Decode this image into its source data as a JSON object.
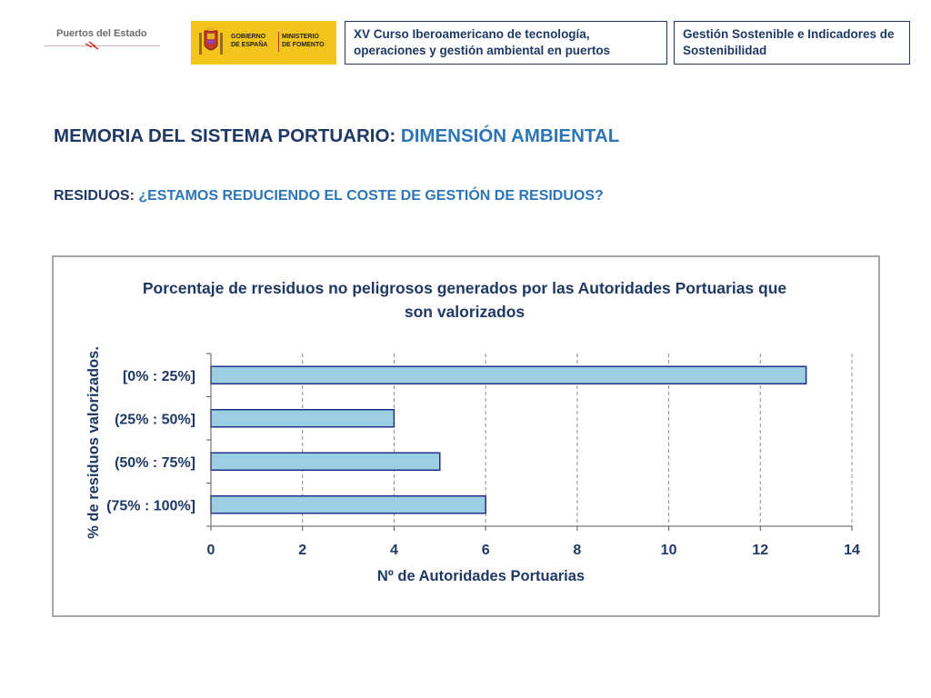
{
  "header": {
    "logo_puertos_text": "Puertos del Estado",
    "logo_gobierno_text": [
      "GOBIERNO",
      "DE ESPAÑA"
    ],
    "logo_ministerio_text": [
      "MINISTERIO",
      "DE FOMENTO"
    ],
    "box_course": "XV Curso Iberoamericano de tecnología, operaciones y gestión ambiental en puertos",
    "box_topic": "Gestión Sostenible e Indicadores de Sostenibilidad"
  },
  "titles": {
    "main_prefix": "MEMORIA DEL SISTEMA PORTUARIO: ",
    "main_accent": "DIMENSIÓN AMBIENTAL",
    "sub_prefix": "RESIDUOS: ",
    "sub_accent": "¿ESTAMOS REDUCIENDO EL COSTE DE GESTIÓN DE RESIDUOS?"
  },
  "chart_data": {
    "type": "bar",
    "orientation": "horizontal",
    "title_lines": [
      "Porcentaje de rresiduos no peligrosos generados por las Autoridades Portuarias que",
      "son valorizados"
    ],
    "xlabel": "Nº de Autoridades Portuarias",
    "ylabel": "% de residuos valorizados.",
    "categories": [
      "[0% : 25%]",
      "(25% : 50%]",
      "(50% : 75%]",
      "(75% : 100%]"
    ],
    "values": [
      13,
      4,
      5,
      6
    ],
    "xlim": [
      0,
      14
    ],
    "xticks": [
      0,
      2,
      4,
      6,
      8,
      10,
      12,
      14
    ],
    "grid": "vertical-dashed",
    "colors": {
      "bar_fill": "#9dcfe2",
      "bar_stroke": "#1f2f8a",
      "text": "#1f3864",
      "grid": "#8c8c8c",
      "frame": "#a6a6a6"
    }
  }
}
